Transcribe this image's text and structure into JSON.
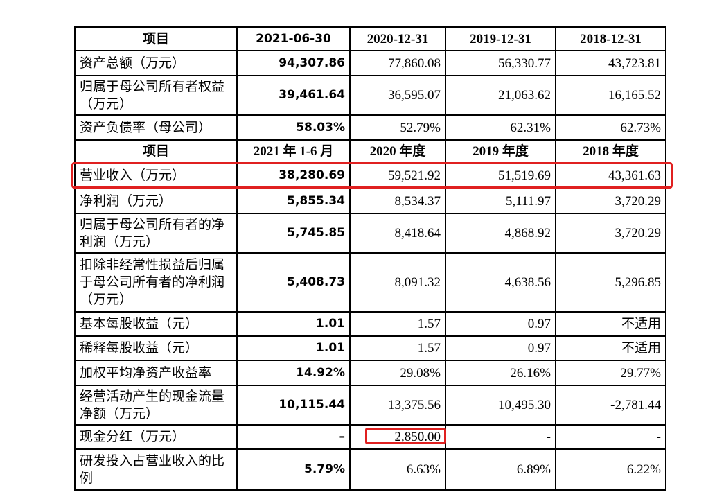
{
  "colors": {
    "highlight": "#e02020",
    "border": "#000000"
  },
  "balance_header": [
    "项目",
    "2021-06-30",
    "2020-12-31",
    "2019-12-31",
    "2018-12-31"
  ],
  "balance_rows": [
    {
      "label": "资产总额（万元）",
      "values": [
        "94,307.86",
        "77,860.08",
        "56,330.77",
        "43,723.81"
      ]
    },
    {
      "label": "归属于母公司所有者权益（万元）",
      "values": [
        "39,461.64",
        "36,595.07",
        "21,063.62",
        "16,165.52"
      ]
    },
    {
      "label": "资产负债率（母公司）",
      "values": [
        "58.03%",
        "52.79%",
        "62.31%",
        "62.73%"
      ]
    }
  ],
  "income_header": [
    "项目",
    "2021 年 1-6 月",
    "2020 年度",
    "2019 年度",
    "2018 年度"
  ],
  "income_rows": [
    {
      "label": "营业收入（万元）",
      "values": [
        "38,280.69",
        "59,521.92",
        "51,519.69",
        "43,361.63"
      ]
    },
    {
      "label": "净利润（万元）",
      "values": [
        "5,855.34",
        "8,534.37",
        "5,111.97",
        "3,720.29"
      ]
    },
    {
      "label": "归属于母公司所有者的净利润（万元）",
      "values": [
        "5,745.85",
        "8,418.64",
        "4,868.92",
        "3,720.29"
      ]
    },
    {
      "label": "扣除非经常性损益后归属于母公司所有者的净利润（万元）",
      "values": [
        "5,408.73",
        "8,091.32",
        "4,638.56",
        "5,296.85"
      ]
    },
    {
      "label": "基本每股收益（元）",
      "values": [
        "1.01",
        "1.57",
        "0.97",
        "不适用"
      ]
    },
    {
      "label": "稀释每股收益（元）",
      "values": [
        "1.01",
        "1.57",
        "0.97",
        "不适用"
      ]
    },
    {
      "label": "加权平均净资产收益率",
      "values": [
        "14.92%",
        "29.08%",
        "26.16%",
        "29.77%"
      ]
    },
    {
      "label": "经营活动产生的现金流量净额（万元）",
      "values": [
        "10,115.44",
        "13,375.56",
        "10,495.30",
        "-2,781.44"
      ]
    },
    {
      "label": "现金分红（万元）",
      "values": [
        "–",
        "2,850.00",
        "-",
        "-"
      ]
    },
    {
      "label": "研发投入占营业收入的比例",
      "values": [
        "5.79%",
        "6.63%",
        "6.89%",
        "6.22%"
      ]
    }
  ]
}
